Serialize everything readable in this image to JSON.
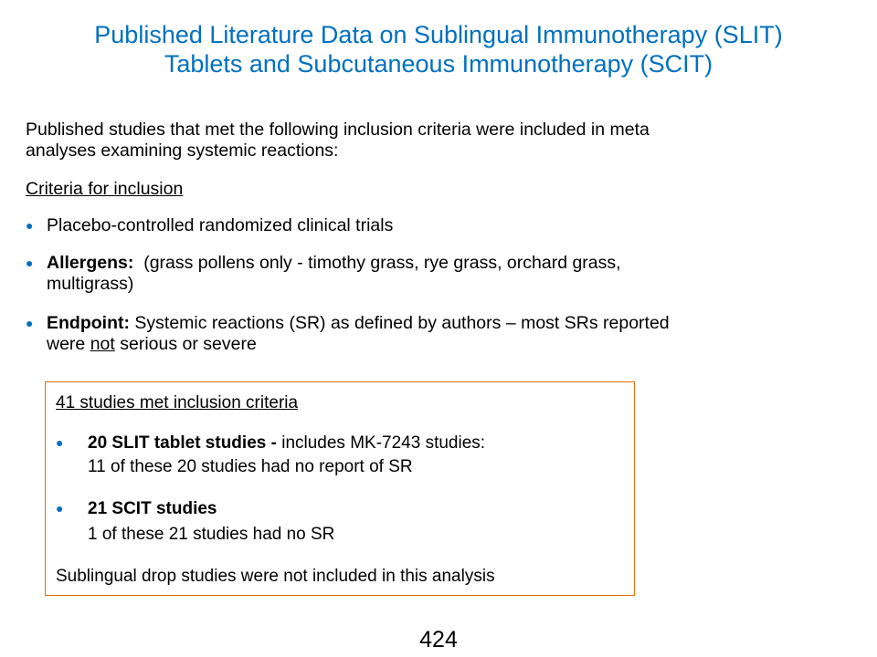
{
  "title": {
    "line1": "Published Literature Data on Sublingual Immunotherapy (SLIT)",
    "line2": "Tablets and Subcutaneous Immunotherapy (SCIT)"
  },
  "intro": {
    "line1": "Published studies that met the following inclusion criteria were included in meta",
    "line2": "analyses examining systemic reactions:"
  },
  "criteria_heading": "Criteria for inclusion",
  "bullet_icon": "filled-circle-bullet",
  "accent_color": "#0070c0",
  "box_border_color": "#e46c0a",
  "bullets": [
    {
      "text": "Placebo-controlled randomized clinical trials"
    },
    {
      "bold": "Allergens:",
      "line1": "(grass pollens only - timothy grass, rye grass, orchard grass,",
      "line2": "multigrass)"
    },
    {
      "bold": "Endpoint:",
      "line1": "Systemic reactions (SR) as defined by authors – most SRs reported",
      "line2_pre": "were",
      "line2_underlined": "not",
      "line2_post": "serious or severe"
    }
  ],
  "box": {
    "heading": "41 studies met inclusion criteria",
    "items": [
      {
        "bold": "20 SLIT tablet studies  -",
        "rest": "includes MK-7243 studies:",
        "line2": "11 of these 20 studies had no report of SR"
      },
      {
        "bold": "21 SCIT studies",
        "line2": "1 of these 21 studies had no SR"
      }
    ],
    "footer": "Sublingual drop studies were not included in this analysis"
  },
  "page_number": "424"
}
